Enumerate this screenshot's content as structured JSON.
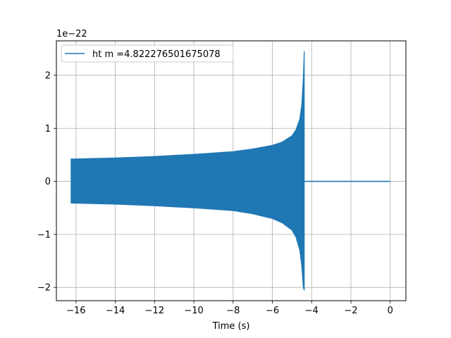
{
  "chart_data": {
    "type": "line",
    "title": "",
    "xlabel": "Time (s)",
    "ylabel": "",
    "y_offset_label": "1e−22",
    "y_scale_exponent": -22,
    "xlim": [
      -17.0,
      0.8
    ],
    "ylim": [
      -2.25,
      2.65
    ],
    "x_ticks": [
      -16,
      -14,
      -12,
      -10,
      -8,
      -6,
      -4,
      -2,
      0
    ],
    "x_tick_labels": [
      "−16",
      "−14",
      "−12",
      "−10",
      "−8",
      "−6",
      "−4",
      "−2",
      "0"
    ],
    "y_ticks": [
      -2,
      -1,
      0,
      1,
      2
    ],
    "y_tick_labels": [
      "−2",
      "−1",
      "0",
      "1",
      "2"
    ],
    "grid": true,
    "legend_position": "upper-left",
    "colors": {
      "series": "#1f77b4",
      "grid": "#b0b0b0",
      "axes": "#000000"
    },
    "series": [
      {
        "name": "ht m =4.822276501675078",
        "description_kind": "chirp-envelope",
        "envelope": {
          "t": [
            -16.25,
            -14,
            -12,
            -10,
            -8,
            -7,
            -6,
            -5.5,
            -5,
            -4.8,
            -4.6,
            -4.5,
            -4.42,
            -4.38
          ],
          "upper": [
            0.42,
            0.44,
            0.47,
            0.51,
            0.56,
            0.61,
            0.68,
            0.74,
            0.86,
            0.97,
            1.18,
            1.45,
            1.95,
            2.45
          ],
          "lower": [
            -0.41,
            -0.43,
            -0.46,
            -0.5,
            -0.55,
            -0.61,
            -0.7,
            -0.78,
            -0.92,
            -1.05,
            -1.3,
            -1.6,
            -2.0,
            -2.05
          ]
        },
        "post_merger_flat": {
          "t_start": -4.35,
          "t_end": 0.0,
          "value": 0.0
        }
      }
    ]
  }
}
